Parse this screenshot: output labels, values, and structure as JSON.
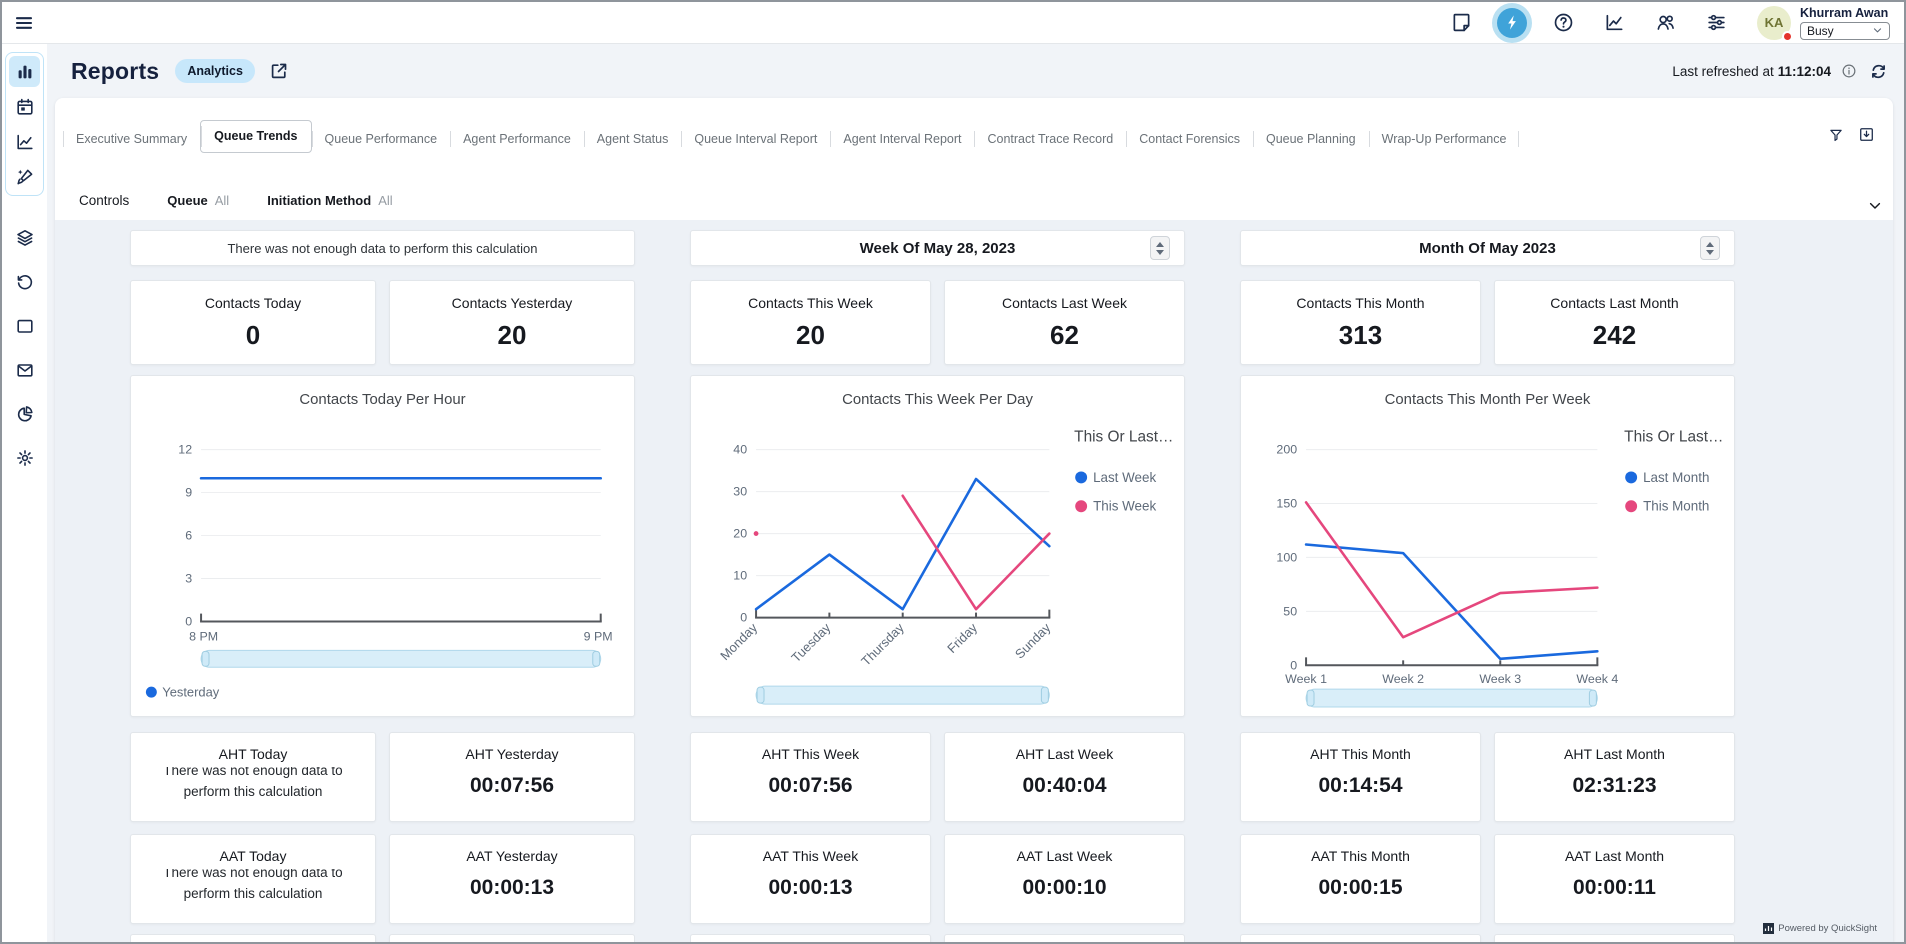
{
  "topbar": {
    "nav_icons": [
      {
        "name": "notes-icon",
        "active": false
      },
      {
        "name": "insights-bolt-icon",
        "active": true
      },
      {
        "name": "help-icon",
        "active": false
      },
      {
        "name": "metrics-icon",
        "active": false
      },
      {
        "name": "contacts-icon",
        "active": false
      },
      {
        "name": "settings-sliders-icon",
        "active": false
      }
    ],
    "user": {
      "initials": "KA",
      "name": "Khurram Awan",
      "status": "Busy"
    }
  },
  "sidebar": {
    "grouped_icons": [
      "bar-chart-icon",
      "calendar-icon",
      "line-chart-icon",
      "design-icon"
    ],
    "active_icon": "bar-chart-icon",
    "icons": [
      "layers-icon",
      "history-icon",
      "window-icon",
      "mail-icon",
      "pie-chart-icon",
      "gear-icon"
    ]
  },
  "header": {
    "title": "Reports",
    "badge": "Analytics",
    "last_refreshed_label": "Last refreshed at",
    "last_refreshed_time": "11:12:04"
  },
  "panel": {
    "tabs": [
      {
        "label": "Executive Summary",
        "active": false
      },
      {
        "label": "Queue Trends",
        "active": true
      },
      {
        "label": "Queue Performance",
        "active": false
      },
      {
        "label": "Agent Performance",
        "active": false
      },
      {
        "label": "Agent Status",
        "active": false
      },
      {
        "label": "Queue Interval Report",
        "active": false
      },
      {
        "label": "Agent Interval Report",
        "active": false
      },
      {
        "label": "Contract Trace Record",
        "active": false
      },
      {
        "label": "Contact Forensics",
        "active": false
      },
      {
        "label": "Queue Planning",
        "active": false
      },
      {
        "label": "Wrap-Up Performance",
        "active": false
      }
    ],
    "toolbar_icons": [
      "filter-funnel-icon",
      "download-icon"
    ]
  },
  "controls": {
    "label": "Controls",
    "filters": [
      {
        "name": "Queue",
        "value": "All"
      },
      {
        "name": "Initiation Method",
        "value": "All"
      }
    ]
  },
  "columns": [
    {
      "header": {
        "text": "There was not enough data to perform this calculation",
        "stepper": false
      },
      "kpis": [
        {
          "title": "Contacts Today",
          "value": "0"
        },
        {
          "title": "Contacts Yesterday",
          "value": "20"
        }
      ],
      "aht": [
        {
          "title": "AHT Today",
          "message": "There was not enough data to perform this calculation"
        },
        {
          "title": "AHT Yesterday",
          "value": "00:07:56"
        }
      ],
      "aat": [
        {
          "title": "AAT Today",
          "message": "There was not enough data to perform this calculation"
        },
        {
          "title": "AAT Yesterday",
          "value": "00:00:13"
        }
      ]
    },
    {
      "header": {
        "text": "Week Of May 28, 2023",
        "stepper": true
      },
      "kpis": [
        {
          "title": "Contacts This Week",
          "value": "20"
        },
        {
          "title": "Contacts Last Week",
          "value": "62"
        }
      ],
      "aht": [
        {
          "title": "AHT This Week",
          "value": "00:07:56"
        },
        {
          "title": "AHT Last Week",
          "value": "00:40:04"
        }
      ],
      "aat": [
        {
          "title": "AAT This Week",
          "value": "00:00:13"
        },
        {
          "title": "AAT Last Week",
          "value": "00:00:10"
        }
      ]
    },
    {
      "header": {
        "text": "Month Of May 2023",
        "stepper": true
      },
      "kpis": [
        {
          "title": "Contacts This Month",
          "value": "313"
        },
        {
          "title": "Contacts Last Month",
          "value": "242"
        }
      ],
      "aht": [
        {
          "title": "AHT This Month",
          "value": "00:14:54"
        },
        {
          "title": "AHT Last Month",
          "value": "02:31:23"
        }
      ],
      "aat": [
        {
          "title": "AAT This Month",
          "value": "00:00:15"
        },
        {
          "title": "AAT Last Month",
          "value": "00:00:11"
        }
      ]
    }
  ],
  "chart_data": [
    {
      "type": "line",
      "title": "Contacts Today Per Hour",
      "x": [
        "8 PM",
        "9 PM"
      ],
      "x_axis": "time-endpoints",
      "series": [
        {
          "name": "Yesterday",
          "color": "#1a69de",
          "values": [
            10,
            10
          ]
        }
      ],
      "ylim": [
        0,
        12
      ],
      "yticks": [
        0,
        3,
        6,
        9,
        12
      ],
      "legend_position": "bottom",
      "grid": true,
      "has_scrollbar": true
    },
    {
      "type": "line",
      "title": "Contacts This Week Per Day",
      "categories": [
        "Monday",
        "Tuesday",
        "Thursday",
        "Friday",
        "Sunday"
      ],
      "legend_title": "This Or Last…",
      "series": [
        {
          "name": "Last Week",
          "color": "#1a69de",
          "values": [
            2,
            15,
            2,
            33,
            17
          ]
        },
        {
          "name": "This Week",
          "color": "#e5477d",
          "values": [
            20,
            null,
            29,
            2,
            20
          ]
        }
      ],
      "ylim": [
        0,
        40
      ],
      "yticks": [
        0,
        10,
        20,
        30,
        40
      ],
      "legend_position": "right",
      "x_label_rotation": -45,
      "grid": true,
      "has_scrollbar": true
    },
    {
      "type": "line",
      "title": "Contacts This Month Per Week",
      "categories": [
        "Week 1",
        "Week 2",
        "Week 3",
        "Week 4"
      ],
      "legend_title": "This Or Last…",
      "series": [
        {
          "name": "Last Month",
          "color": "#1a69de",
          "values": [
            112,
            104,
            6,
            13
          ]
        },
        {
          "name": "This Month",
          "color": "#e5477d",
          "values": [
            151,
            26,
            67,
            72
          ]
        }
      ],
      "ylim": [
        0,
        200
      ],
      "yticks": [
        0,
        50,
        100,
        150,
        200
      ],
      "legend_position": "right",
      "grid": true,
      "has_scrollbar": true
    }
  ],
  "footer": {
    "powered_by": "Powered by QuickSight"
  },
  "colors": {
    "accent_blue": "#1a69de",
    "accent_pink": "#e5477d",
    "active_icon_bg": "#3fa3d9",
    "badge_bg": "#c7e7fb",
    "scrollbar_fill": "#d9eef9",
    "status_busy_dot": "#e4332c",
    "dark_navy": "#1b2b4a"
  }
}
